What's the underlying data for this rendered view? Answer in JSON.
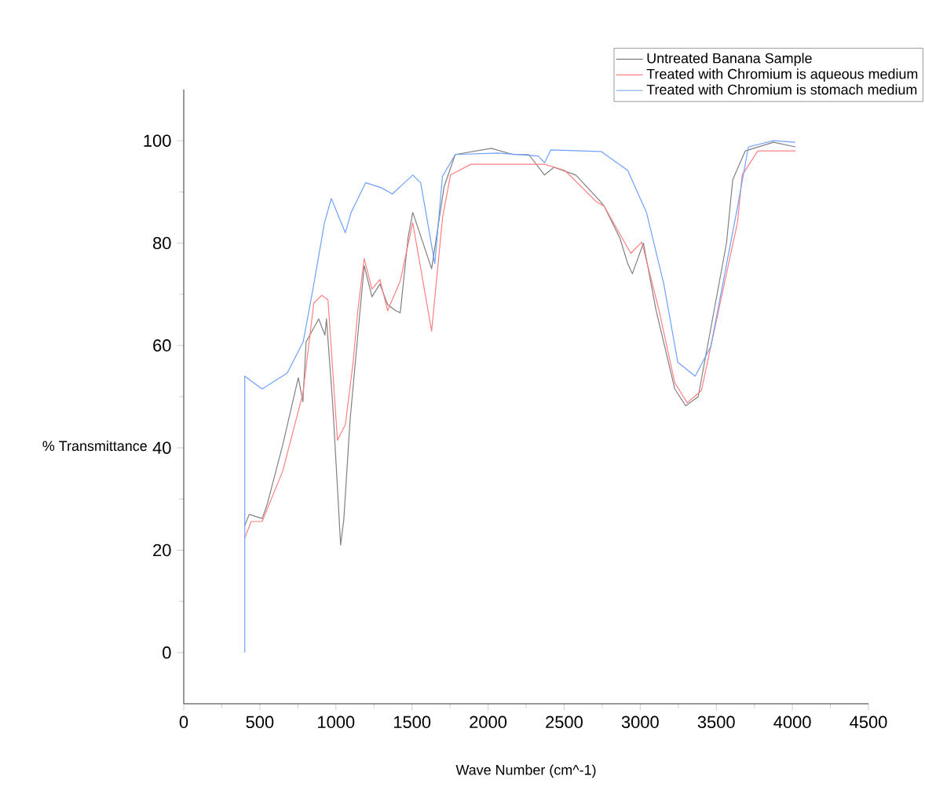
{
  "chart_data": {
    "type": "line",
    "xlabel": "Wave Number (cm^-1)",
    "ylabel": "% Transmittance",
    "xlim": [
      0,
      4500
    ],
    "ylim": [
      -10,
      110
    ],
    "xticks": [
      0,
      500,
      1000,
      1500,
      2000,
      2500,
      3000,
      3500,
      4000,
      4500
    ],
    "yticks": [
      0,
      20,
      40,
      60,
      80,
      100
    ],
    "legend": "top right",
    "series": [
      {
        "name": "Untreated Banana Sample",
        "color": "#808080",
        "x": [
          400,
          430,
          515,
          546,
          650,
          753,
          783,
          804,
          887,
          928,
          938,
          979,
          1010,
          1031,
          1052,
          1093,
          1144,
          1186,
          1237,
          1289,
          1340,
          1392,
          1423,
          1474,
          1505,
          1629,
          1711,
          1784,
          2021,
          2165,
          2268,
          2371,
          2433,
          2577,
          2742,
          2763,
          2866,
          2918,
          2948,
          3021,
          3103,
          3227,
          3299,
          3381,
          3567,
          3608,
          3690,
          3876,
          4020
        ],
        "values": [
          24.7,
          27,
          26.2,
          28.7,
          40.5,
          53.7,
          49,
          60.7,
          65.2,
          62,
          65.2,
          48.5,
          32.3,
          21,
          26,
          45.4,
          62,
          75.6,
          69.5,
          72,
          68,
          66.8,
          66.4,
          81,
          86,
          75,
          91,
          97.3,
          98.5,
          97.3,
          97.3,
          93.3,
          94.8,
          93.3,
          88,
          87.2,
          81,
          76,
          74,
          80,
          67,
          51.5,
          48.2,
          50,
          80,
          92.4,
          98,
          99.7,
          98.8
        ]
      },
      {
        "name": "Treated with Chromium is aqueous medium",
        "color": "#ff8080",
        "x": [
          400,
          443,
          515,
          650,
          783,
          855,
          907,
          948,
          1010,
          1062,
          1113,
          1144,
          1186,
          1237,
          1289,
          1340,
          1423,
          1505,
          1546,
          1629,
          1701,
          1753,
          1887,
          2371,
          2505,
          2711,
          2763,
          2938,
          3010,
          3124,
          3227,
          3309,
          3402,
          3639,
          3670,
          3773,
          4020
        ],
        "values": [
          22.3,
          25.6,
          25.6,
          35.4,
          50.6,
          68.3,
          69.8,
          68.9,
          41.5,
          44.5,
          56.7,
          66.8,
          77,
          71,
          72.9,
          66.8,
          72.6,
          84,
          77,
          62.8,
          85,
          93.3,
          95.4,
          95.4,
          94.2,
          88.1,
          87.2,
          78,
          80.2,
          66.8,
          52.7,
          48.8,
          51.2,
          84,
          93.3,
          98,
          98
        ]
      },
      {
        "name": "Treated with Chromium is stomach medium",
        "color": "#6fa0ff",
        "x": [
          401,
          401,
          515,
          680,
          785,
          855,
          925,
          970,
          1062,
          1100,
          1196,
          1300,
          1371,
          1505,
          1557,
          1650,
          1700,
          1784,
          2062,
          2330,
          2371,
          2412,
          2742,
          2918,
          3041,
          3155,
          3247,
          3361,
          3464,
          3639,
          3711,
          3876,
          4020
        ],
        "values": [
          0,
          54,
          51.5,
          54.6,
          60.7,
          72,
          84,
          88.7,
          82,
          86,
          91.8,
          90.8,
          89.6,
          93.3,
          91.8,
          76,
          93,
          97.3,
          97.6,
          97,
          95.7,
          98.2,
          97.9,
          94.2,
          86,
          72,
          56.7,
          54,
          59.8,
          87,
          98.8,
          100,
          99.7
        ]
      }
    ]
  }
}
